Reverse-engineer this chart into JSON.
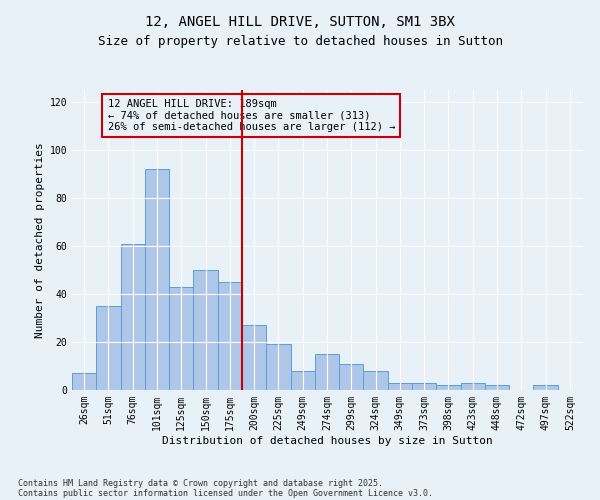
{
  "title": "12, ANGEL HILL DRIVE, SUTTON, SM1 3BX",
  "subtitle": "Size of property relative to detached houses in Sutton",
  "xlabel": "Distribution of detached houses by size in Sutton",
  "ylabel": "Number of detached properties",
  "categories": [
    "26sqm",
    "51sqm",
    "76sqm",
    "101sqm",
    "125sqm",
    "150sqm",
    "175sqm",
    "200sqm",
    "225sqm",
    "249sqm",
    "274sqm",
    "299sqm",
    "324sqm",
    "349sqm",
    "373sqm",
    "398sqm",
    "423sqm",
    "448sqm",
    "472sqm",
    "497sqm",
    "522sqm"
  ],
  "values": [
    7,
    35,
    61,
    92,
    43,
    50,
    45,
    27,
    19,
    8,
    15,
    11,
    8,
    3,
    3,
    2,
    3,
    2,
    0,
    2,
    0
  ],
  "bar_color": "#aec6e8",
  "bar_edge_color": "#5a9fd4",
  "bar_width": 1.0,
  "vline_x": 6.5,
  "vline_color": "#cc0000",
  "ylim": [
    0,
    125
  ],
  "yticks": [
    0,
    20,
    40,
    60,
    80,
    100,
    120
  ],
  "annotation_text": "12 ANGEL HILL DRIVE: 189sqm\n← 74% of detached houses are smaller (313)\n26% of semi-detached houses are larger (112) →",
  "annotation_box_color": "#cc0000",
  "footer_line1": "Contains HM Land Registry data © Crown copyright and database right 2025.",
  "footer_line2": "Contains public sector information licensed under the Open Government Licence v3.0.",
  "bg_color": "#e8f0f8",
  "grid_color": "#ffffff",
  "title_fontsize": 10,
  "subtitle_fontsize": 9,
  "axis_label_fontsize": 8,
  "tick_fontsize": 7,
  "annotation_fontsize": 7.5,
  "footer_fontsize": 6
}
